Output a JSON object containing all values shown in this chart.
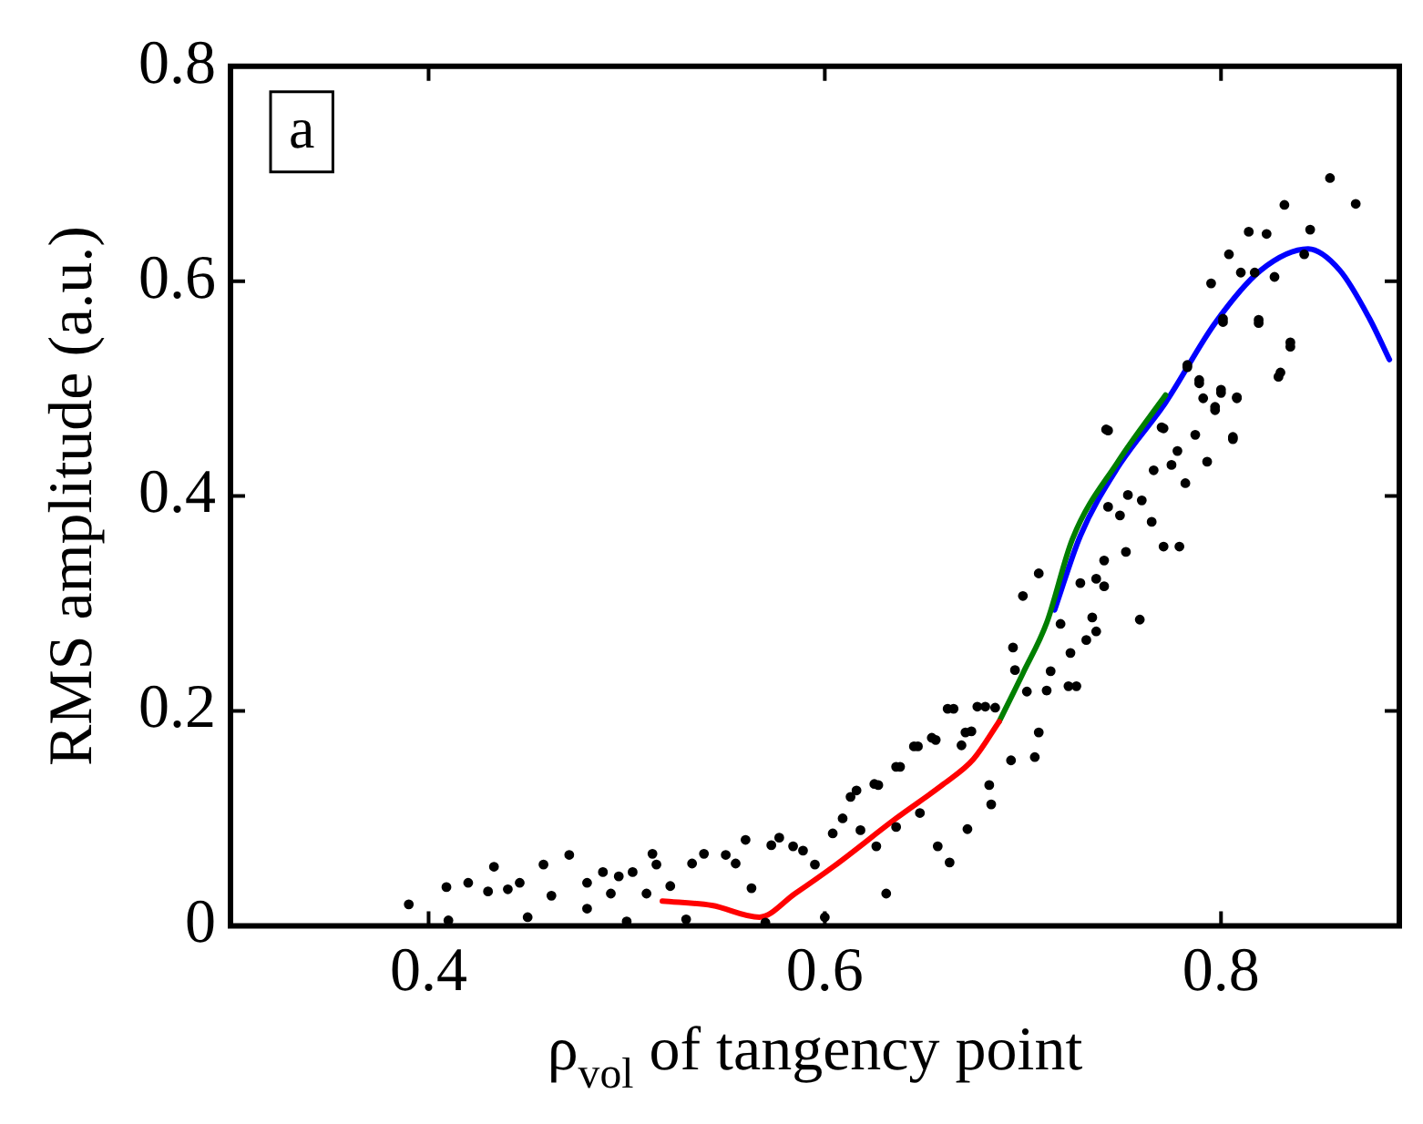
{
  "chart_data": {
    "type": "scatter",
    "xlabel": "ρ$_{vol}$ of tangency point",
    "ylabel": "RMS amplitude (a.u.)",
    "annotations": [
      "a"
    ],
    "xlim": [
      0.3,
      0.89
    ],
    "ylim": [
      0,
      0.8
    ],
    "xticks": [
      0.4,
      0.6,
      0.8
    ],
    "yticks": [
      0,
      0.2,
      0.4,
      0.6,
      0.8
    ],
    "grid": false,
    "legend": false,
    "series": [
      {
        "marker": "circle",
        "color": "#000000",
        "x": [
          0.39,
          0.409,
          0.42,
          0.433,
          0.43,
          0.44,
          0.446,
          0.458,
          0.471,
          0.462,
          0.48,
          0.48,
          0.488,
          0.496,
          0.503,
          0.513,
          0.515,
          0.492,
          0.51,
          0.522,
          0.533,
          0.539,
          0.55,
          0.555,
          0.56,
          0.563,
          0.573,
          0.577,
          0.584,
          0.589,
          0.595,
          0.604,
          0.609,
          0.613,
          0.618,
          0.626,
          0.625,
          0.631,
          0.636,
          0.636,
          0.645,
          0.648,
          0.654,
          0.657,
          0.662,
          0.663,
          0.671,
          0.672,
          0.681,
          0.41,
          0.45,
          0.5,
          0.53,
          0.57,
          0.6,
          0.616,
          0.627,
          0.638,
          0.647,
          0.656,
          0.665,
          0.669,
          0.674,
          0.677,
          0.683,
          0.684,
          0.686,
          0.694,
          0.695,
          0.696,
          0.7,
          0.702,
          0.706,
          0.708,
          0.708,
          0.712,
          0.714,
          0.719,
          0.723,
          0.724,
          0.727,
          0.729,
          0.732,
          0.735,
          0.737,
          0.737,
          0.741,
          0.741,
          0.743,
          0.743,
          0.749,
          0.752,
          0.753,
          0.759,
          0.76,
          0.765,
          0.766,
          0.771,
          0.771,
          0.775,
          0.778,
          0.779,
          0.782,
          0.783,
          0.787,
          0.789,
          0.791,
          0.793,
          0.797,
          0.8,
          0.801,
          0.806,
          0.808,
          0.819,
          0.829,
          0.835,
          0.742,
          0.77,
          0.783,
          0.789,
          0.795,
          0.801,
          0.804,
          0.81,
          0.814,
          0.817,
          0.819,
          0.823,
          0.827,
          0.83,
          0.832,
          0.835,
          0.842,
          0.845,
          0.855,
          0.868,
          0.8,
          0.808,
          0.797,
          0.806
        ],
        "values": [
          0.02,
          0.036,
          0.04,
          0.055,
          0.032,
          0.034,
          0.04,
          0.057,
          0.066,
          0.028,
          0.016,
          0.04,
          0.05,
          0.046,
          0.05,
          0.067,
          0.057,
          0.03,
          0.03,
          0.037,
          0.058,
          0.067,
          0.066,
          0.058,
          0.08,
          0.035,
          0.075,
          0.082,
          0.074,
          0.07,
          0.057,
          0.086,
          0.1,
          0.12,
          0.089,
          0.074,
          0.132,
          0.03,
          0.148,
          0.092,
          0.167,
          0.105,
          0.175,
          0.074,
          0.202,
          0.059,
          0.18,
          0.09,
          0.204,
          0.005,
          0.008,
          0.004,
          0.006,
          0.003,
          0.008,
          0.126,
          0.131,
          0.148,
          0.167,
          0.173,
          0.202,
          0.168,
          0.181,
          0.204,
          0.131,
          0.113,
          0.203,
          0.154,
          0.259,
          0.238,
          0.307,
          0.218,
          0.157,
          0.18,
          0.328,
          0.219,
          0.237,
          0.281,
          0.223,
          0.254,
          0.223,
          0.319,
          0.266,
          0.287,
          0.274,
          0.323,
          0.316,
          0.34,
          0.39,
          0.461,
          0.382,
          0.348,
          0.401,
          0.285,
          0.396,
          0.376,
          0.424,
          0.353,
          0.463,
          0.429,
          0.442,
          0.353,
          0.412,
          0.52,
          0.457,
          0.505,
          0.491,
          0.432,
          0.48,
          0.496,
          0.562,
          0.453,
          0.491,
          0.561,
          0.511,
          0.539,
          0.462,
          0.464,
          0.522,
          0.508,
          0.598,
          0.565,
          0.625,
          0.608,
          0.646,
          0.608,
          0.564,
          0.644,
          0.604,
          0.515,
          0.671,
          0.543,
          0.625,
          0.648,
          0.696,
          0.672,
          0.499,
          0.492,
          0.483,
          0.455
        ]
      },
      {
        "type": "line",
        "marker": "none",
        "color": "#ff0000",
        "x": [
          0.518,
          0.543,
          0.567,
          0.585,
          0.605,
          0.636,
          0.66,
          0.675,
          0.688
        ],
        "values": [
          0.023,
          0.019,
          0.008,
          0.03,
          0.056,
          0.1,
          0.132,
          0.155,
          0.19
        ]
      },
      {
        "type": "line",
        "marker": "none",
        "color": "#007f00",
        "x": [
          0.688,
          0.7,
          0.712,
          0.725,
          0.748,
          0.772
        ],
        "values": [
          0.19,
          0.235,
          0.282,
          0.36,
          0.432,
          0.494
        ]
      },
      {
        "type": "line",
        "marker": "none",
        "color": "#0000ff",
        "x": [
          0.716,
          0.729,
          0.748,
          0.772,
          0.797,
          0.82,
          0.844,
          0.86,
          0.875,
          0.885
        ],
        "values": [
          0.294,
          0.363,
          0.427,
          0.487,
          0.561,
          0.61,
          0.63,
          0.61,
          0.565,
          0.527
        ]
      }
    ]
  }
}
